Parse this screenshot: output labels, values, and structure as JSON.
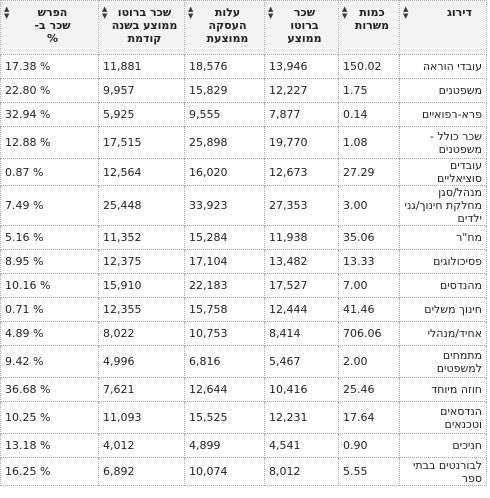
{
  "headers": {
    "rank": "דירוג",
    "count": [
      "כמות",
      "משרות"
    ],
    "salary": [
      "שכר",
      "ברוטו",
      "ממוצע"
    ],
    "cost": [
      "עלות",
      "העסקה",
      "ממוצעת"
    ],
    "prev": [
      "שכר ברוטו",
      "ממוצע בשנה",
      "קודמת"
    ],
    "diff": [
      "הפרש",
      "שכר ב-",
      "%"
    ]
  },
  "rows": [
    {
      "name": "עובדי הוראה",
      "count": "150.02",
      "salary": "13,946",
      "cost": "18,576",
      "prev": "11,881",
      "diff": "17.38 %"
    },
    {
      "name": "משפטנים",
      "count": "1.75",
      "salary": "12,227",
      "cost": "15,829",
      "prev": "9,957",
      "diff": "22.80 %"
    },
    {
      "name": "פרא-רפואיים",
      "count": "0.14",
      "salary": "7,877",
      "cost": "9,555",
      "prev": "5,925",
      "diff": "32.94 %"
    },
    {
      "name": "שכר כולל - משפטנים",
      "count": "1.08",
      "salary": "19,770",
      "cost": "25,898",
      "prev": "17,515",
      "diff": "12.88 %"
    },
    {
      "name": "עובדים סוציאליים",
      "count": "27.29",
      "salary": "12,673",
      "cost": "16,020",
      "prev": "12,564",
      "diff": "0.87 %"
    },
    {
      "name": "מנהל/סגן מחלקת חינוך/גני ילדים",
      "count": "3.00",
      "salary": "27,353",
      "cost": "33,923",
      "prev": "25,448",
      "diff": "7.49 %"
    },
    {
      "name": "מח\"ר",
      "count": "35.06",
      "salary": "11,938",
      "cost": "15,284",
      "prev": "11,352",
      "diff": "5.16 %"
    },
    {
      "name": "פסיכולוגים",
      "count": "13.33",
      "salary": "13,482",
      "cost": "17,104",
      "prev": "12,375",
      "diff": "8.95 %"
    },
    {
      "name": "מהנדסים",
      "count": "7.00",
      "salary": "17,527",
      "cost": "22,183",
      "prev": "15,910",
      "diff": "10.16 %"
    },
    {
      "name": "חינוך משלים",
      "count": "41.46",
      "salary": "12,444",
      "cost": "15,758",
      "prev": "12,355",
      "diff": "0.71 %"
    },
    {
      "name": "אחיד/מנהלי",
      "count": "706.06",
      "salary": "8,414",
      "cost": "10,753",
      "prev": "8,022",
      "diff": "4.89 %"
    },
    {
      "name": "מתמחים למשפטים",
      "count": "2.00",
      "salary": "5,467",
      "cost": "6,816",
      "prev": "4,996",
      "diff": "9.42 %"
    },
    {
      "name": "חוזה מיוחד",
      "count": "25.46",
      "salary": "10,416",
      "cost": "12,644",
      "prev": "7,621",
      "diff": "36.68 %"
    },
    {
      "name": "הנדסאים וטכנאים",
      "count": "17.64",
      "salary": "12,231",
      "cost": "15,525",
      "prev": "11,093",
      "diff": "10.25 %"
    },
    {
      "name": "חניכים",
      "count": "0.90",
      "salary": "4,541",
      "cost": "4,899",
      "prev": "4,012",
      "diff": "13.18 %"
    },
    {
      "name": "לבורנטים בבתי ספר",
      "count": "5.55",
      "salary": "8,012",
      "cost": "10,074",
      "prev": "6,892",
      "diff": "16.25 %"
    }
  ]
}
